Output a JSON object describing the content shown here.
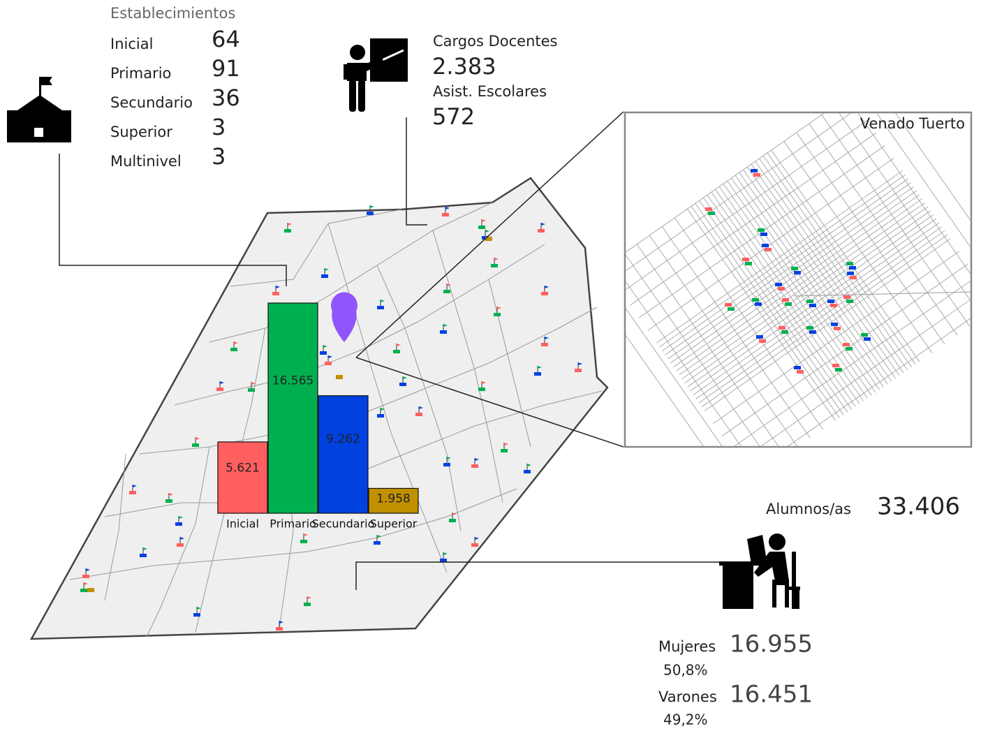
{
  "establecimientos": {
    "title": "Establecimientos",
    "rows": [
      {
        "label": "Inicial",
        "value": "64"
      },
      {
        "label": "Primario",
        "value": "91"
      },
      {
        "label": "Secundario",
        "value": "36"
      },
      {
        "label": "Superior",
        "value": "3"
      },
      {
        "label": "Multinivel",
        "value": "3"
      }
    ]
  },
  "personal": {
    "docentes_label": "Cargos Docentes",
    "docentes_value": "2.383",
    "asistentes_label": "Asist. Escolares",
    "asistentes_value": "572"
  },
  "inset": {
    "title": "Venado Tuerto"
  },
  "alumnos": {
    "label": "Alumnos/as",
    "value": "33.406",
    "mujeres_label": "Mujeres",
    "mujeres_value": "16.955",
    "mujeres_pct": "50,8%",
    "varones_label": "Varones",
    "varones_value": "16.451",
    "varones_pct": "49,2%"
  },
  "chart_data": {
    "type": "bar",
    "categories": [
      "Inicial",
      "Primario",
      "Secundario",
      "Superior"
    ],
    "values": [
      5621,
      16565,
      9262,
      1958
    ],
    "value_labels": [
      "5.621",
      "16.565",
      "9.262",
      "1.958"
    ],
    "colors": [
      "#ff5f5f",
      "#00b050",
      "#0041e0",
      "#c09000"
    ]
  }
}
